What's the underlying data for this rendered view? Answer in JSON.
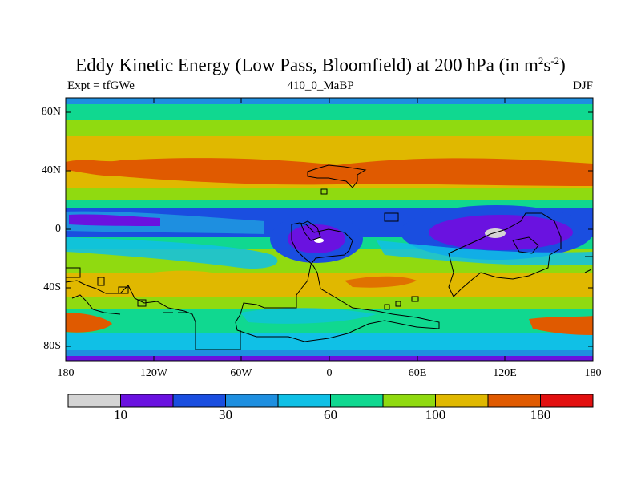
{
  "title": {
    "main": "Eddy Kinetic Energy (Low Pass, Bloomfield) at 200 hPa (in m",
    "sup1": "2",
    "mid": "s",
    "sup2": "-2",
    "close": ")"
  },
  "subtitle_left": "Expt = tfGWe",
  "subtitle_center": "410_0_MaBP",
  "subtitle_right": "DJF",
  "yticks": [
    "80N",
    "40N",
    "0",
    "40S",
    "80S"
  ],
  "xticks": [
    "180",
    "120W",
    "60W",
    "0",
    "60E",
    "120E",
    "180"
  ],
  "colorbar": {
    "colors": [
      "#d4d4d4",
      "#6a12e0",
      "#1a4ee0",
      "#1e8fe0",
      "#10c0e6",
      "#10d890",
      "#90da10",
      "#e0b800",
      "#e05a00",
      "#e21010"
    ],
    "labels": [
      {
        "text": "10",
        "boundary": 1
      },
      {
        "text": "30",
        "boundary": 3
      },
      {
        "text": "60",
        "boundary": 5
      },
      {
        "text": "100",
        "boundary": 7
      },
      {
        "text": "180",
        "boundary": 9
      }
    ]
  }
}
